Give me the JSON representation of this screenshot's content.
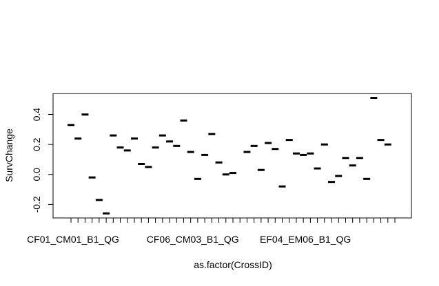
{
  "chart_data": {
    "type": "boxplot",
    "xlabel": "as.factor(CrossID)",
    "ylabel": "SurvChange",
    "ylim": [
      -0.29,
      0.54
    ],
    "yticks": [
      -0.2,
      0.0,
      0.2,
      0.4
    ],
    "ytick_labels": [
      "-0.2",
      "0.0",
      "0.2",
      "0.4"
    ],
    "grid": false,
    "legend": "none",
    "category_count": 47,
    "x_tick_labels": [
      {
        "index": 1,
        "label": "CF01_CM01_B1_QG"
      },
      {
        "index": 18,
        "label": "CF06_CM03_B1_QG"
      },
      {
        "index": 34,
        "label": "EF04_EM06_B1_QG"
      }
    ],
    "values": [
      0.33,
      0.24,
      0.4,
      -0.02,
      -0.17,
      -0.26,
      0.26,
      0.18,
      0.16,
      0.24,
      0.07,
      0.05,
      0.18,
      0.26,
      0.22,
      0.19,
      0.36,
      0.15,
      -0.03,
      0.13,
      0.27,
      0.08,
      0.0,
      0.01,
      null,
      0.15,
      0.19,
      0.03,
      0.21,
      0.17,
      -0.08,
      0.23,
      0.14,
      0.13,
      0.14,
      0.04,
      0.2,
      -0.05,
      -0.01,
      0.11,
      0.06,
      0.11,
      -0.03,
      0.51,
      0.23,
      0.2,
      null
    ]
  }
}
